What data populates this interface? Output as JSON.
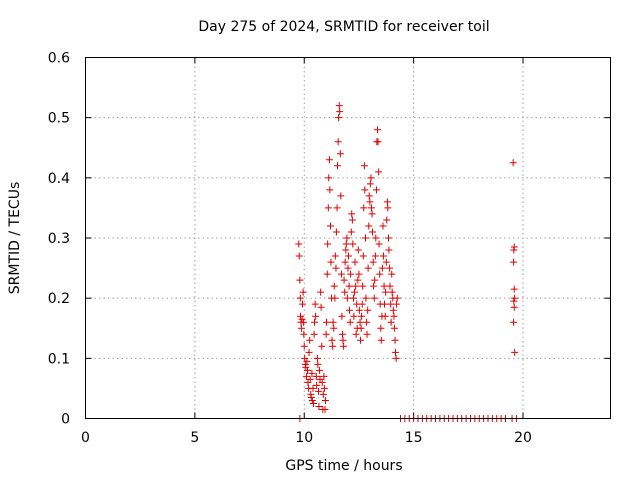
{
  "chart_data": {
    "type": "scatter",
    "title": "Day 275 of 2024, SRMTID for receiver toil",
    "xlabel": "GPS time / hours",
    "ylabel": "SRMTID / TECUs",
    "xlim": [
      0,
      24
    ],
    "ylim": [
      0,
      0.6
    ],
    "x_ticks": [
      0,
      5,
      10,
      15,
      20
    ],
    "x_tick_labels": [
      "0",
      "5",
      "10",
      "15",
      "20"
    ],
    "y_ticks": [
      0,
      0.1,
      0.2,
      0.3,
      0.4,
      0.5,
      0.6
    ],
    "y_tick_labels": [
      "0",
      "0.1",
      "0.2",
      "0.3",
      "0.4",
      "0.5",
      "0.6"
    ],
    "grid": true,
    "marker": "+",
    "series_color": "#e00000",
    "series": [
      {
        "name": "SRMTID",
        "points": [
          [
            9.75,
            0.29
          ],
          [
            9.77,
            0.27
          ],
          [
            9.8,
            0.23
          ],
          [
            9.82,
            0.2
          ],
          [
            9.83,
            0.17
          ],
          [
            9.85,
            0.16
          ],
          [
            9.87,
            0.15
          ],
          [
            9.9,
            0.165
          ],
          [
            9.92,
            0.19
          ],
          [
            9.95,
            0.21
          ],
          [
            9.97,
            0.16
          ],
          [
            9.98,
            0.14
          ],
          [
            9.8,
            0.0
          ],
          [
            10.0,
            0.12
          ],
          [
            10.02,
            0.1
          ],
          [
            10.05,
            0.09
          ],
          [
            10.07,
            0.085
          ],
          [
            10.1,
            0.07
          ],
          [
            10.12,
            0.095
          ],
          [
            10.15,
            0.08
          ],
          [
            10.17,
            0.06
          ],
          [
            10.2,
            0.05
          ],
          [
            10.22,
            0.11
          ],
          [
            10.25,
            0.13
          ],
          [
            10.27,
            0.065
          ],
          [
            10.3,
            0.04
          ],
          [
            10.32,
            0.035
          ],
          [
            10.35,
            0.075
          ],
          [
            10.37,
            0.03
          ],
          [
            10.4,
            0.05
          ],
          [
            10.42,
            0.025
          ],
          [
            10.45,
            0.14
          ],
          [
            10.47,
            0.16
          ],
          [
            10.5,
            0.19
          ],
          [
            10.52,
            0.17
          ],
          [
            10.55,
            0.07
          ],
          [
            10.57,
            0.055
          ],
          [
            10.6,
            0.1
          ],
          [
            10.62,
            0.09
          ],
          [
            10.65,
            0.045
          ],
          [
            10.67,
            0.02
          ],
          [
            10.7,
            0.08
          ],
          [
            10.72,
            0.065
          ],
          [
            10.75,
            0.21
          ],
          [
            10.77,
            0.185
          ],
          [
            10.8,
            0.12
          ],
          [
            10.82,
            0.06
          ],
          [
            10.85,
            0.015
          ],
          [
            10.87,
            0.04
          ],
          [
            10.9,
            0.07
          ],
          [
            10.92,
            0.05
          ],
          [
            10.95,
            0.015
          ],
          [
            10.97,
            0.03
          ],
          [
            11.0,
            0.14
          ],
          [
            11.02,
            0.16
          ],
          [
            11.05,
            0.24
          ],
          [
            11.07,
            0.29
          ],
          [
            11.1,
            0.35
          ],
          [
            11.12,
            0.4
          ],
          [
            11.15,
            0.43
          ],
          [
            11.17,
            0.38
          ],
          [
            11.2,
            0.32
          ],
          [
            11.22,
            0.26
          ],
          [
            11.25,
            0.2
          ],
          [
            11.27,
            0.13
          ],
          [
            11.3,
            0.12
          ],
          [
            11.32,
            0.16
          ],
          [
            11.35,
            0.15
          ],
          [
            11.37,
            0.22
          ],
          [
            11.4,
            0.2
          ],
          [
            11.42,
            0.27
          ],
          [
            11.45,
            0.25
          ],
          [
            11.47,
            0.31
          ],
          [
            11.5,
            0.35
          ],
          [
            11.52,
            0.42
          ],
          [
            11.55,
            0.46
          ],
          [
            11.57,
            0.5
          ],
          [
            11.6,
            0.52
          ],
          [
            11.62,
            0.51
          ],
          [
            11.65,
            0.44
          ],
          [
            11.67,
            0.37
          ],
          [
            11.7,
            0.24
          ],
          [
            11.72,
            0.17
          ],
          [
            11.75,
            0.14
          ],
          [
            11.77,
            0.13
          ],
          [
            11.8,
            0.12
          ],
          [
            11.82,
            0.23
          ],
          [
            11.85,
            0.21
          ],
          [
            11.87,
            0.26
          ],
          [
            11.9,
            0.28
          ],
          [
            11.92,
            0.29
          ],
          [
            11.95,
            0.3
          ],
          [
            11.97,
            0.2
          ],
          [
            12.0,
            0.25
          ],
          [
            12.02,
            0.27
          ],
          [
            12.05,
            0.22
          ],
          [
            12.07,
            0.18
          ],
          [
            12.1,
            0.16
          ],
          [
            12.12,
            0.24
          ],
          [
            12.15,
            0.31
          ],
          [
            12.17,
            0.34
          ],
          [
            12.2,
            0.33
          ],
          [
            12.22,
            0.29
          ],
          [
            12.25,
            0.2
          ],
          [
            12.27,
            0.17
          ],
          [
            12.3,
            0.21
          ],
          [
            12.32,
            0.26
          ],
          [
            12.35,
            0.22
          ],
          [
            12.37,
            0.14
          ],
          [
            12.4,
            0.19
          ],
          [
            12.42,
            0.15
          ],
          [
            12.45,
            0.23
          ],
          [
            12.47,
            0.28
          ],
          [
            12.5,
            0.24
          ],
          [
            12.52,
            0.18
          ],
          [
            12.55,
            0.16
          ],
          [
            12.57,
            0.13
          ],
          [
            12.6,
            0.15
          ],
          [
            12.62,
            0.17
          ],
          [
            12.65,
            0.19
          ],
          [
            12.67,
            0.22
          ],
          [
            12.7,
            0.27
          ],
          [
            12.72,
            0.35
          ],
          [
            12.75,
            0.42
          ],
          [
            12.77,
            0.38
          ],
          [
            12.8,
            0.3
          ],
          [
            12.82,
            0.2
          ],
          [
            12.85,
            0.16
          ],
          [
            12.87,
            0.14
          ],
          [
            12.9,
            0.18
          ],
          [
            12.92,
            0.25
          ],
          [
            12.95,
            0.32
          ],
          [
            12.97,
            0.37
          ],
          [
            13.0,
            0.36
          ],
          [
            13.02,
            0.39
          ],
          [
            13.05,
            0.4
          ],
          [
            13.07,
            0.35
          ],
          [
            13.1,
            0.34
          ],
          [
            13.12,
            0.31
          ],
          [
            13.15,
            0.26
          ],
          [
            13.17,
            0.22
          ],
          [
            13.2,
            0.2
          ],
          [
            13.22,
            0.23
          ],
          [
            13.25,
            0.27
          ],
          [
            13.27,
            0.3
          ],
          [
            13.3,
            0.38
          ],
          [
            13.32,
            0.46
          ],
          [
            13.35,
            0.48
          ],
          [
            13.37,
            0.46
          ],
          [
            13.4,
            0.41
          ],
          [
            13.42,
            0.29
          ],
          [
            13.45,
            0.24
          ],
          [
            13.47,
            0.19
          ],
          [
            13.5,
            0.15
          ],
          [
            13.52,
            0.13
          ],
          [
            13.55,
            0.17
          ],
          [
            13.57,
            0.25
          ],
          [
            13.6,
            0.32
          ],
          [
            13.62,
            0.27
          ],
          [
            13.65,
            0.22
          ],
          [
            13.67,
            0.19
          ],
          [
            13.7,
            0.17
          ],
          [
            13.72,
            0.21
          ],
          [
            13.75,
            0.26
          ],
          [
            13.77,
            0.33
          ],
          [
            13.8,
            0.36
          ],
          [
            13.82,
            0.35
          ],
          [
            13.85,
            0.3
          ],
          [
            13.87,
            0.28
          ],
          [
            13.9,
            0.25
          ],
          [
            13.92,
            0.22
          ],
          [
            13.95,
            0.19
          ],
          [
            13.97,
            0.16
          ],
          [
            14.0,
            0.24
          ],
          [
            14.02,
            0.21
          ],
          [
            14.05,
            0.2
          ],
          [
            14.07,
            0.18
          ],
          [
            14.1,
            0.17
          ],
          [
            14.12,
            0.15
          ],
          [
            14.15,
            0.13
          ],
          [
            14.17,
            0.11
          ],
          [
            14.2,
            0.1
          ],
          [
            14.22,
            0.19
          ],
          [
            14.25,
            0.2
          ],
          [
            14.4,
            0.0
          ],
          [
            14.6,
            0.0
          ],
          [
            14.8,
            0.0
          ],
          [
            15.0,
            0.0
          ],
          [
            15.2,
            0.0
          ],
          [
            15.4,
            0.0
          ],
          [
            15.6,
            0.0
          ],
          [
            15.8,
            0.0
          ],
          [
            16.0,
            0.0
          ],
          [
            16.2,
            0.0
          ],
          [
            16.4,
            0.0
          ],
          [
            16.6,
            0.0
          ],
          [
            16.8,
            0.0
          ],
          [
            17.0,
            0.0
          ],
          [
            17.2,
            0.0
          ],
          [
            17.4,
            0.0
          ],
          [
            17.6,
            0.0
          ],
          [
            17.8,
            0.0
          ],
          [
            18.0,
            0.0
          ],
          [
            18.2,
            0.0
          ],
          [
            18.4,
            0.0
          ],
          [
            18.6,
            0.0
          ],
          [
            18.8,
            0.0
          ],
          [
            19.0,
            0.0
          ],
          [
            19.2,
            0.0
          ],
          [
            19.5,
            0.0
          ],
          [
            19.7,
            0.0
          ],
          [
            19.55,
            0.425
          ],
          [
            19.58,
            0.28
          ],
          [
            19.6,
            0.285
          ],
          [
            19.57,
            0.26
          ],
          [
            19.6,
            0.215
          ],
          [
            19.62,
            0.2
          ],
          [
            19.58,
            0.195
          ],
          [
            19.6,
            0.185
          ],
          [
            19.57,
            0.16
          ],
          [
            19.62,
            0.11
          ]
        ]
      }
    ]
  }
}
